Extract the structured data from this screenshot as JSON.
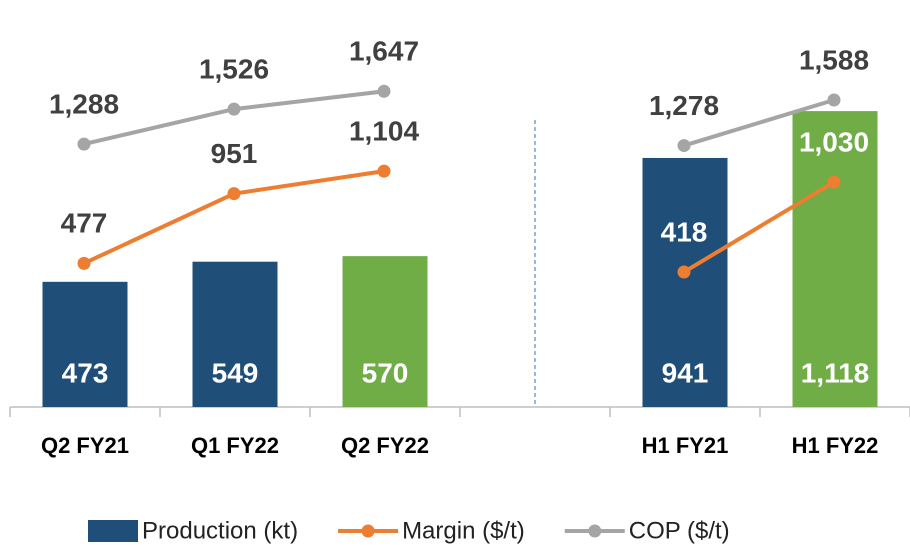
{
  "chart_data": {
    "type": "bar",
    "categories": [
      "Q2 FY21",
      "Q1 FY22",
      "Q2 FY22",
      null,
      "H1 FY21",
      "H1 FY22"
    ],
    "ylim": [
      0,
      1500
    ],
    "y2lim": [
      -500,
      2200
    ],
    "series": [
      {
        "name": "Production (kt)",
        "type": "bar",
        "color": "#1f4e79",
        "colors": [
          "#1f4e79",
          "#1f4e79",
          "#70ad47",
          null,
          "#1f4e79",
          "#70ad47"
        ],
        "values": [
          473,
          549,
          570,
          null,
          941,
          1118
        ],
        "value_labels": [
          "473",
          "549",
          "570",
          null,
          "941",
          "1,118"
        ]
      },
      {
        "name": "Margin ($/t)",
        "type": "line",
        "axis": "y2",
        "color": "#ed7d31",
        "values": [
          477,
          951,
          1104,
          null,
          418,
          1030
        ],
        "value_labels": [
          "477",
          "951",
          "1,104",
          null,
          "418",
          "1,030"
        ]
      },
      {
        "name": "COP ($/t)",
        "type": "line",
        "axis": "y2",
        "color": "#a5a5a5",
        "values": [
          1288,
          1526,
          1647,
          null,
          1278,
          1588
        ],
        "value_labels": [
          "1,288",
          "1,526",
          "1,647",
          null,
          "1,278",
          "1,588"
        ]
      }
    ]
  }
}
